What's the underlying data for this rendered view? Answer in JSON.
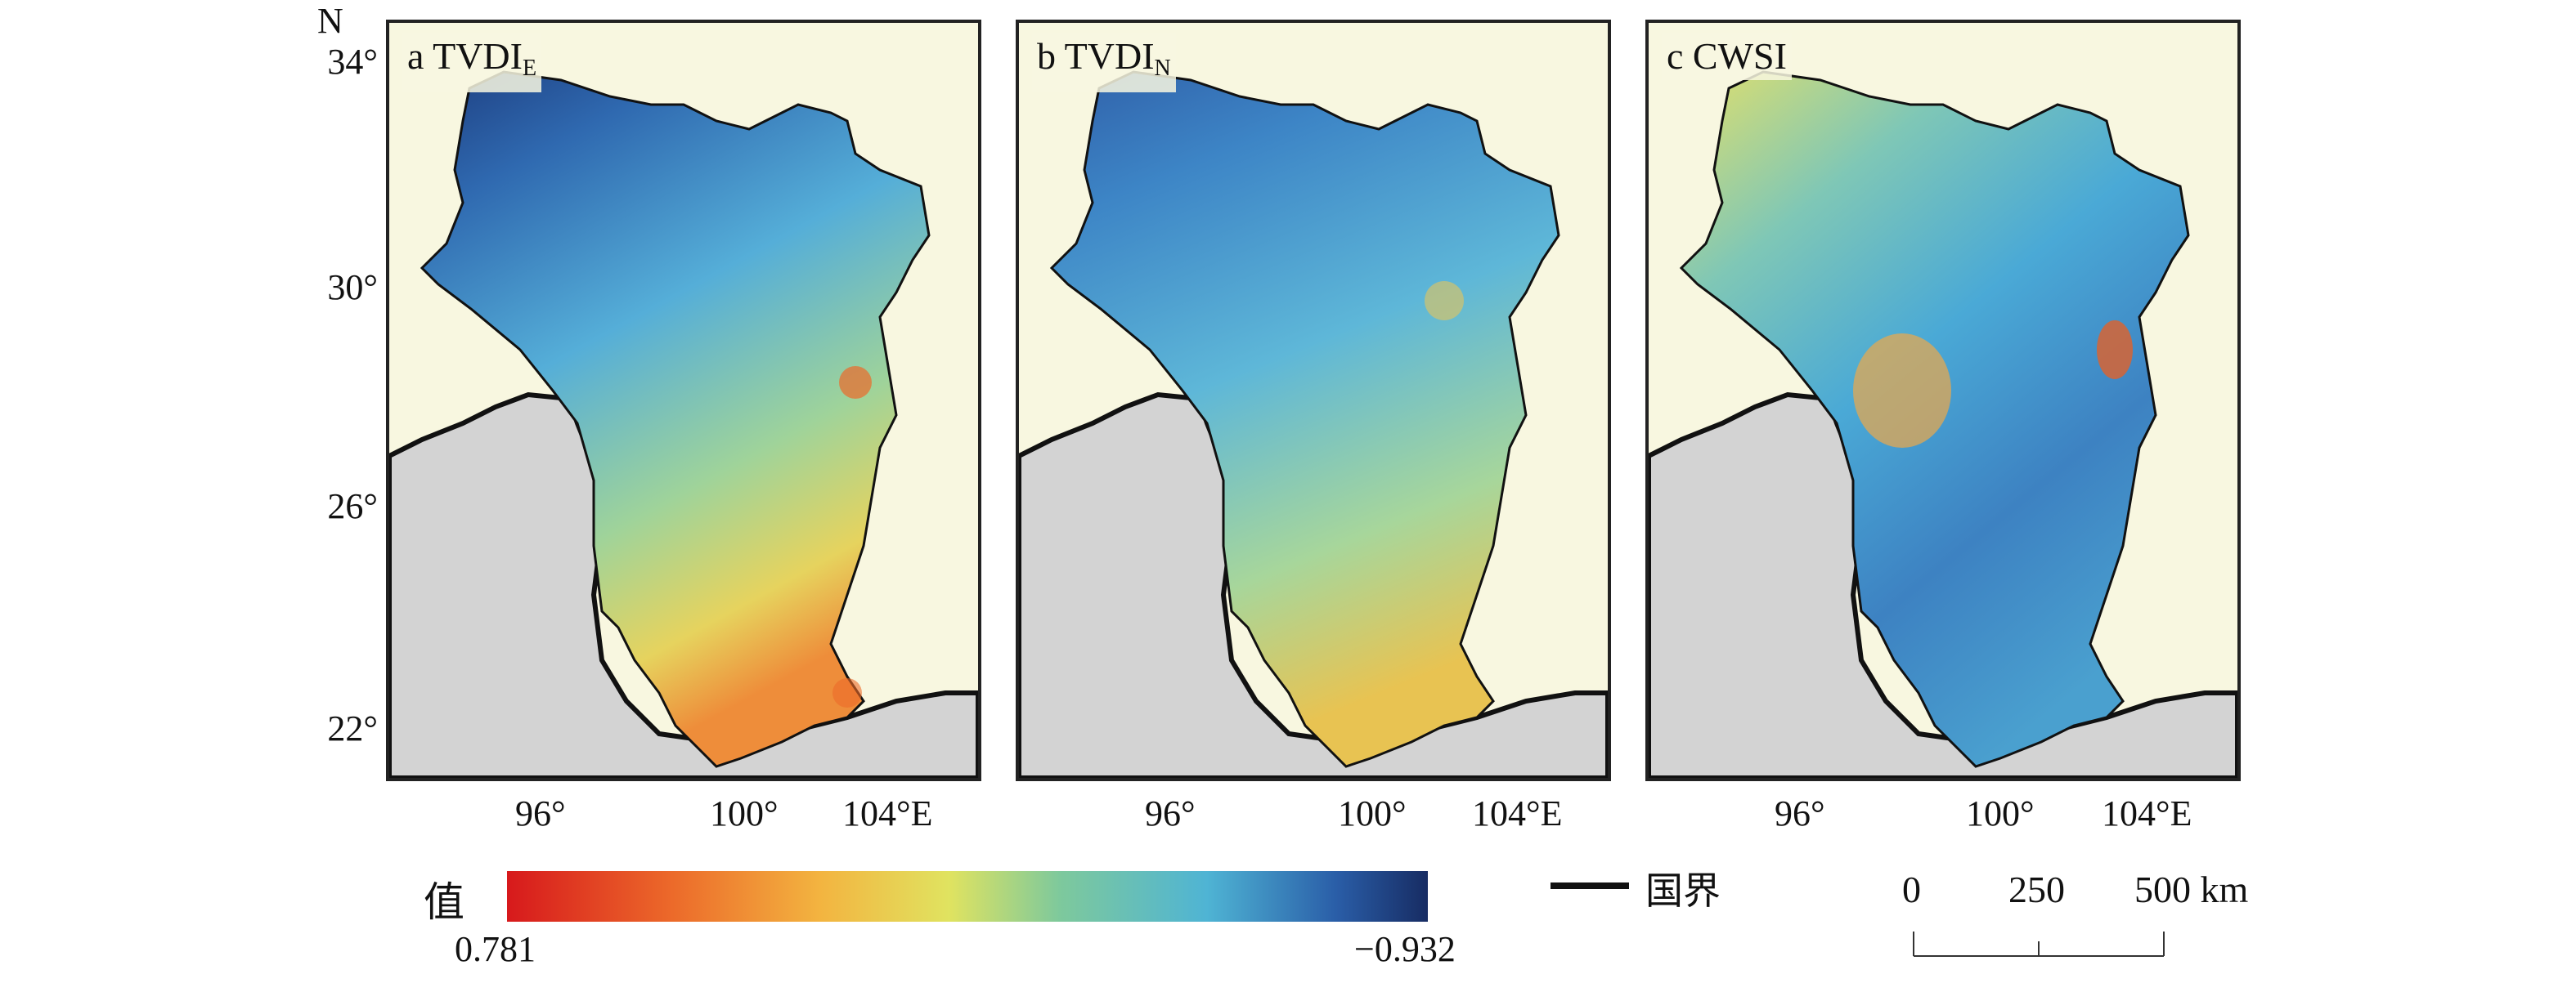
{
  "north_label": "N",
  "latitude_labels": [
    "34°",
    "30°",
    "26°",
    "22°"
  ],
  "longitude_labels": [
    "96°",
    "100°",
    "104°E"
  ],
  "panels": [
    {
      "letter": "a",
      "name": "TVDI",
      "subscript": "E"
    },
    {
      "letter": "b",
      "name": "TVDI",
      "subscript": "N"
    },
    {
      "letter": "c",
      "name": "CWSI",
      "subscript": ""
    }
  ],
  "legend": {
    "title": "值",
    "min_label": "0.781",
    "max_label": "−0.932",
    "colors": [
      "#d7191c",
      "#ec6a2a",
      "#f3b440",
      "#e0e360",
      "#7ec99c",
      "#4fb4d4",
      "#2a5ea8",
      "#172c63"
    ]
  },
  "border_legend": {
    "label": "国界",
    "color": "#111111"
  },
  "scale": {
    "labels": [
      "0",
      "250",
      "500 km"
    ]
  },
  "colors": {
    "sea": "#f8f7e0",
    "neighbor_land": "#d3d3d3",
    "boundary": "#111111"
  }
}
